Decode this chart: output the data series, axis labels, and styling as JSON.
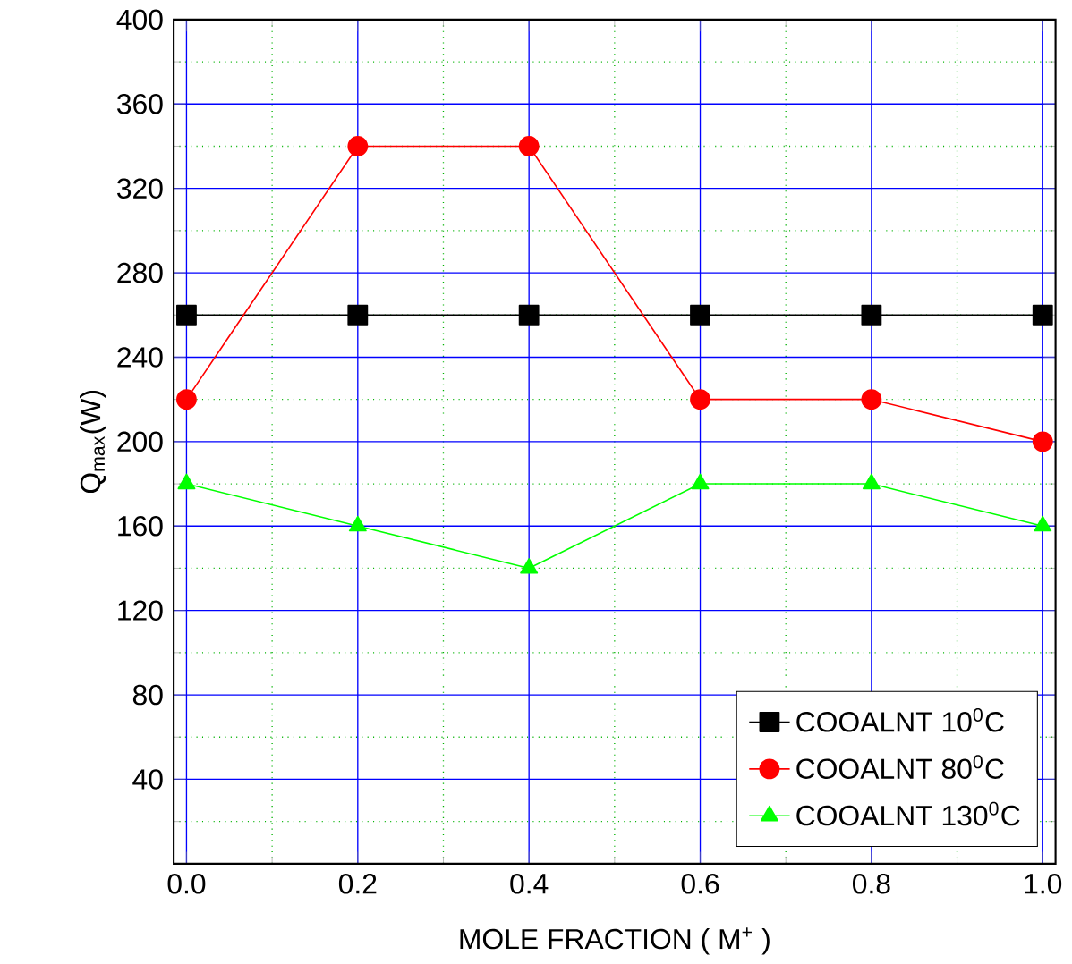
{
  "chart_data": {
    "type": "line",
    "xlabel": "MOLE  FRACTION ( M$^{+}$ )",
    "ylabel": "Q$_{max}$(W)",
    "x": [
      0.0,
      0.2,
      0.4,
      0.6,
      0.8,
      1.0
    ],
    "series": [
      {
        "name": "COOALNT 10$^{0}$C",
        "color": "#000000",
        "marker": "square",
        "values": [
          260,
          260,
          260,
          260,
          260,
          260
        ]
      },
      {
        "name": "COOALNT 80$^{0}$C",
        "color": "#ff0000",
        "marker": "circle",
        "values": [
          220,
          340,
          340,
          220,
          220,
          200
        ]
      },
      {
        "name": "COOALNT 130$^{0}$C",
        "color": "#00ff00",
        "marker": "triangle",
        "values": [
          180,
          160,
          140,
          180,
          180,
          160
        ]
      }
    ],
    "xlim": [
      -0.015,
      1.015
    ],
    "ylim": [
      0,
      400
    ],
    "xticks": [
      {
        "value": 0.0,
        "label": "0.0"
      },
      {
        "value": 0.1,
        "label": null
      },
      {
        "value": 0.2,
        "label": "0.2"
      },
      {
        "value": 0.3,
        "label": null
      },
      {
        "value": 0.4,
        "label": "0.4"
      },
      {
        "value": 0.5,
        "label": null
      },
      {
        "value": 0.6,
        "label": "0.6"
      },
      {
        "value": 0.7,
        "label": null
      },
      {
        "value": 0.8,
        "label": "0.8"
      },
      {
        "value": 0.9,
        "label": null
      },
      {
        "value": 1.0,
        "label": "1.0"
      }
    ],
    "yticks": [
      {
        "value": 20,
        "label": null
      },
      40,
      {
        "value": 60,
        "label": null
      },
      80,
      {
        "value": 100,
        "label": null
      },
      120,
      {
        "value": 140,
        "label": null
      },
      160,
      {
        "value": 180,
        "label": null
      },
      200,
      {
        "value": 220,
        "label": null
      },
      240,
      {
        "value": 260,
        "label": null
      },
      280,
      {
        "value": 300,
        "label": null
      },
      320,
      {
        "value": 340,
        "label": null
      },
      360,
      {
        "value": 380,
        "label": null
      },
      400
    ],
    "grid": true,
    "legend": "bottom right",
    "line_style": "solid"
  }
}
